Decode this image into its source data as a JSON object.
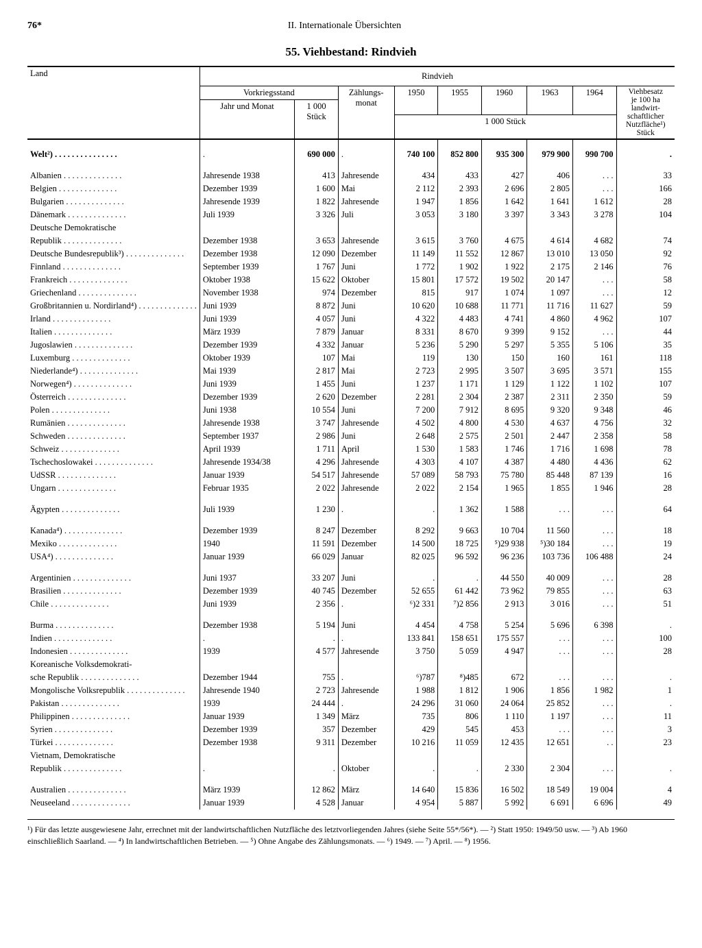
{
  "page_number": "76*",
  "section": "II. Internationale Übersichten",
  "title": "55. Viehbestand: Rindvieh",
  "header_group": "Rindvieh",
  "col_land": "Land",
  "col_prewar": "Vorkriegsstand",
  "col_year_month": "Jahr und Monat",
  "col_1000": "1 000\nStück",
  "col_census_month": "Zählungs-\nmonat",
  "col_y1950": "1950",
  "col_y1955": "1955",
  "col_y1960": "1960",
  "col_y1963": "1963",
  "col_y1964": "1964",
  "col_1000b": "1 000 Stück",
  "col_density": "Viehbesatz\nje 100 ha\nlandwirt-\nschaftlicher\nNutzfläche¹)\nStück",
  "world_label": "Welt²)",
  "rows": [
    {
      "c": "Albanien",
      "ym": "Jahresende 1938",
      "p": "413",
      "m": "Jahresende",
      "y50": "434",
      "y55": "433",
      "y60": "427",
      "y63": "406",
      "y64": ". . .",
      "d": "33"
    },
    {
      "c": "Belgien",
      "ym": "Dezember 1939",
      "p": "1 600",
      "m": "Mai",
      "y50": "2 112",
      "y55": "2 393",
      "y60": "2 696",
      "y63": "2 805",
      "y64": ". . .",
      "d": "166"
    },
    {
      "c": "Bulgarien",
      "ym": "Jahresende 1939",
      "p": "1 822",
      "m": "Jahresende",
      "y50": "1 947",
      "y55": "1 856",
      "y60": "1 642",
      "y63": "1 641",
      "y64": "1 612",
      "d": "28"
    },
    {
      "c": "Dänemark",
      "ym": "Juli 1939",
      "p": "3 326",
      "m": "Juli",
      "y50": "3 053",
      "y55": "3 180",
      "y60": "3 397",
      "y63": "3 343",
      "y64": "3 278",
      "d": "104"
    },
    {
      "c": "Deutsche Demokratische",
      "two": true
    },
    {
      "c": "  Republik",
      "ym": "Dezember 1938",
      "p": "3 653",
      "m": "Jahresende",
      "y50": "3 615",
      "y55": "3 760",
      "y60": "4 675",
      "y63": "4 614",
      "y64": "4 682",
      "d": "74"
    },
    {
      "c": "Deutsche Bundesrepublik³)",
      "ym": "Dezember 1938",
      "p": "12 090",
      "m": "Dezember",
      "y50": "11 149",
      "y55": "11 552",
      "y60": "12 867",
      "y63": "13 010",
      "y64": "13 050",
      "d": "92"
    },
    {
      "c": "Finnland",
      "ym": "September 1939",
      "p": "1 767",
      "m": "Juni",
      "y50": "1 772",
      "y55": "1 902",
      "y60": "1 922",
      "y63": "2 175",
      "y64": "2 146",
      "d": "76"
    },
    {
      "c": "Frankreich",
      "ym": "Oktober 1938",
      "p": "15 622",
      "m": "Oktober",
      "y50": "15 801",
      "y55": "17 572",
      "y60": "19 502",
      "y63": "20 147",
      "y64": ". . .",
      "d": "58"
    },
    {
      "c": "Griechenland",
      "ym": "November 1938",
      "p": "974",
      "m": "Dezember",
      "y50": "815",
      "y55": "917",
      "y60": "1 074",
      "y63": "1 097",
      "y64": ". . .",
      "d": "12"
    },
    {
      "c": "Großbritannien u. Nordirland⁴)",
      "ym": "Juni 1939",
      "p": "8 872",
      "m": "Juni",
      "y50": "10 620",
      "y55": "10 688",
      "y60": "11 771",
      "y63": "11 716",
      "y64": "11 627",
      "d": "59"
    },
    {
      "c": "Irland",
      "ym": "Juni 1939",
      "p": "4 057",
      "m": "Juni",
      "y50": "4 322",
      "y55": "4 483",
      "y60": "4 741",
      "y63": "4 860",
      "y64": "4 962",
      "d": "107"
    },
    {
      "c": "Italien",
      "ym": "März 1939",
      "p": "7 879",
      "m": "Januar",
      "y50": "8 331",
      "y55": "8 670",
      "y60": "9 399",
      "y63": "9 152",
      "y64": ". . .",
      "d": "44"
    },
    {
      "c": "Jugoslawien",
      "ym": "Dezember 1939",
      "p": "4 332",
      "m": "Januar",
      "y50": "5 236",
      "y55": "5 290",
      "y60": "5 297",
      "y63": "5 355",
      "y64": "5 106",
      "d": "35"
    },
    {
      "c": "Luxemburg",
      "ym": "Oktober 1939",
      "p": "107",
      "m": "Mai",
      "y50": "119",
      "y55": "130",
      "y60": "150",
      "y63": "160",
      "y64": "161",
      "d": "118"
    },
    {
      "c": "Niederlande⁴)",
      "ym": "Mai 1939",
      "p": "2 817",
      "m": "Mai",
      "y50": "2 723",
      "y55": "2 995",
      "y60": "3 507",
      "y63": "3 695",
      "y64": "3 571",
      "d": "155"
    },
    {
      "c": "Norwegen⁴)",
      "ym": "Juni 1939",
      "p": "1 455",
      "m": "Juni",
      "y50": "1 237",
      "y55": "1 171",
      "y60": "1 129",
      "y63": "1 122",
      "y64": "1 102",
      "d": "107"
    },
    {
      "c": "Österreich",
      "ym": "Dezember 1939",
      "p": "2 620",
      "m": "Dezember",
      "y50": "2 281",
      "y55": "2 304",
      "y60": "2 387",
      "y63": "2 311",
      "y64": "2 350",
      "d": "59"
    },
    {
      "c": "Polen",
      "ym": "Juni 1938",
      "p": "10 554",
      "m": "Juni",
      "y50": "7 200",
      "y55": "7 912",
      "y60": "8 695",
      "y63": "9 320",
      "y64": "9 348",
      "d": "46"
    },
    {
      "c": "Rumänien",
      "ym": "Jahresende 1938",
      "p": "3 747",
      "m": "Jahresende",
      "y50": "4 502",
      "y55": "4 800",
      "y60": "4 530",
      "y63": "4 637",
      "y64": "4 756",
      "d": "32"
    },
    {
      "c": "Schweden",
      "ym": "September 1937",
      "p": "2 986",
      "m": "Juni",
      "y50": "2 648",
      "y55": "2 575",
      "y60": "2 501",
      "y63": "2 447",
      "y64": "2 358",
      "d": "58"
    },
    {
      "c": "Schweiz",
      "ym": "April 1939",
      "p": "1 711",
      "m": "April",
      "y50": "1 530",
      "y55": "1 583",
      "y60": "1 746",
      "y63": "1 716",
      "y64": "1 698",
      "d": "78"
    },
    {
      "c": "Tschechoslowakei",
      "ym": "Jahresende 1934/38",
      "p": "4 296",
      "m": "Jahresende",
      "y50": "4 303",
      "y55": "4 107",
      "y60": "4 387",
      "y63": "4 480",
      "y64": "4 436",
      "d": "62"
    },
    {
      "c": "UdSSR",
      "ym": "Januar 1939",
      "p": "54 517",
      "m": "Jahresende",
      "y50": "57 089",
      "y55": "58 793",
      "y60": "75 780",
      "y63": "85 448",
      "y64": "87 139",
      "d": "16"
    },
    {
      "c": "Ungarn",
      "ym": "Februar 1935",
      "p": "2 022",
      "m": "Jahresende",
      "y50": "2 022",
      "y55": "2 154",
      "y60": "1 965",
      "y63": "1 855",
      "y64": "1 946",
      "d": "28"
    },
    {
      "gap": true
    },
    {
      "c": "Ägypten",
      "ym": "Juli 1939",
      "p": "1 230",
      "m": ".",
      "y50": ".",
      "y55": "1 362",
      "y60": "1 588",
      "y63": ". . .",
      "y64": ". . .",
      "d": "64"
    },
    {
      "gap": true
    },
    {
      "c": "Kanada⁴)",
      "ym": "Dezember 1939",
      "p": "8 247",
      "m": "Dezember",
      "y50": "8 292",
      "y55": "9 663",
      "y60": "10 704",
      "y63": "11 560",
      "y64": ". . .",
      "d": "18"
    },
    {
      "c": "Mexiko",
      "ym": "1940",
      "p": "11 591",
      "m": "Dezember",
      "y50": "14 500",
      "y55": "18 725",
      "y60": "⁵)29 938",
      "y63": "⁵)30 184",
      "y64": ". . .",
      "d": "19"
    },
    {
      "c": "USA⁴)",
      "ym": "Januar 1939",
      "p": "66 029",
      "m": "Januar",
      "y50": "82 025",
      "y55": "96 592",
      "y60": "96 236",
      "y63": "103 736",
      "y64": "106 488",
      "d": "24"
    },
    {
      "gap": true
    },
    {
      "c": "Argentinien",
      "ym": "Juni 1937",
      "p": "33 207",
      "m": "Juni",
      "y50": ".",
      "y55": ".",
      "y60": "44 550",
      "y63": "40 009",
      "y64": ". . .",
      "d": "28"
    },
    {
      "c": "Brasilien",
      "ym": "Dezember 1939",
      "p": "40 745",
      "m": "Dezember",
      "y50": "52 655",
      "y55": "61 442",
      "y60": "73 962",
      "y63": "79 855",
      "y64": ". . .",
      "d": "63"
    },
    {
      "c": "Chile",
      "ym": "Juni 1939",
      "p": "2 356",
      "m": ".",
      "y50": "⁶)2 331",
      "y55": "⁷)2 856",
      "y60": "2 913",
      "y63": "3 016",
      "y64": ". . .",
      "d": "51"
    },
    {
      "gap": true
    },
    {
      "c": "Burma",
      "ym": "Dezember 1938",
      "p": "5 194",
      "m": "Juni",
      "y50": "4 454",
      "y55": "4 758",
      "y60": "5 254",
      "y63": "5 696",
      "y64": "6 398",
      "d": "."
    },
    {
      "c": "Indien",
      "ym": ".",
      "p": ".",
      "m": ".",
      "y50": "133 841",
      "y55": "158 651",
      "y60": "175 557",
      "y63": ". . .",
      "y64": ". . .",
      "d": "100"
    },
    {
      "c": "Indonesien",
      "ym": "1939",
      "p": "4 577",
      "m": "Jahresende",
      "y50": "3 750",
      "y55": "5 059",
      "y60": "4 947",
      "y63": ". . .",
      "y64": ". . .",
      "d": "28"
    },
    {
      "c": "Koreanische Volksdemokrati-",
      "two": true
    },
    {
      "c": "  sche Republik",
      "ym": "Dezember 1944",
      "p": "755",
      "m": ".",
      "y50": "⁶)787",
      "y55": "⁸)485",
      "y60": "672",
      "y63": ". . .",
      "y64": ". . .",
      "d": "."
    },
    {
      "c": "Mongolische Volksrepublik",
      "ym": "Jahresende 1940",
      "p": "2 723",
      "m": "Jahresende",
      "y50": "1 988",
      "y55": "1 812",
      "y60": "1 906",
      "y63": "1 856",
      "y64": "1 982",
      "d": "1"
    },
    {
      "c": "Pakistan",
      "ym": "1939",
      "p": "24 444",
      "m": ".",
      "y50": "24 296",
      "y55": "31 060",
      "y60": "24 064",
      "y63": "25 852",
      "y64": ". . .",
      "d": "."
    },
    {
      "c": "Philippinen",
      "ym": "Januar 1939",
      "p": "1 349",
      "m": "März",
      "y50": "735",
      "y55": "806",
      "y60": "1 110",
      "y63": "1 197",
      "y64": ". . .",
      "d": "11"
    },
    {
      "c": "Syrien",
      "ym": "Dezember 1939",
      "p": "357",
      "m": "Dezember",
      "y50": "429",
      "y55": "545",
      "y60": "453",
      "y63": ". . .",
      "y64": ". . .",
      "d": "3"
    },
    {
      "c": "Türkei",
      "ym": "Dezember 1938",
      "p": "9 311",
      "m": "Dezember",
      "y50": "10 216",
      "y55": "11 059",
      "y60": "12 435",
      "y63": "12 651",
      "y64": ". .",
      "d": "23"
    },
    {
      "c": "Vietnam, Demokratische",
      "two": true
    },
    {
      "c": "  Republik",
      "ym": ".",
      "p": ".",
      "m": "Oktober",
      "y50": ".",
      "y55": ".",
      "y60": "2 330",
      "y63": "2 304",
      "y64": ". . .",
      "d": "."
    },
    {
      "gap": true
    },
    {
      "c": "Australien",
      "ym": "März 1939",
      "p": "12 862",
      "m": "März",
      "y50": "14 640",
      "y55": "15 836",
      "y60": "16 502",
      "y63": "18 549",
      "y64": "19 004",
      "d": "4"
    },
    {
      "c": "Neuseeland",
      "ym": "Januar 1939",
      "p": "4 528",
      "m": "Januar",
      "y50": "4 954",
      "y55": "5 887",
      "y60": "5 992",
      "y63": "6 691",
      "y64": "6 696",
      "d": "49"
    }
  ],
  "world": {
    "p": "690 000",
    "y50": "740 100",
    "y55": "852 800",
    "y60": "935 300",
    "y63": "979 900",
    "y64": "990 700"
  },
  "footnote": "¹) Für das letzte ausgewiesene Jahr, errechnet mit der landwirtschaftlichen Nutzfläche des letztvorliegenden Jahres (siehe Seite 55*/56*). — ²) Statt 1950: 1949/50 usw. — ³) Ab 1960 einschließlich Saarland. — ⁴) In landwirtschaftlichen Betrieben. — ⁵) Ohne Angabe des Zählungsmonats. — ⁶) 1949. — ⁷) April. — ⁸) 1956."
}
